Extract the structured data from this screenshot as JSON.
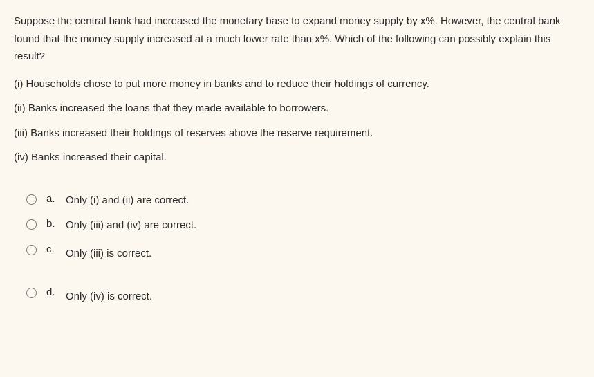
{
  "question": {
    "stem": "Suppose the central bank had increased the monetary base to expand money supply by x%. However, the central bank found that the money supply increased at a much lower rate than x%. Which of the following can possibly explain this result?",
    "statements": [
      "(i) Households chose to put more money in banks and to reduce their holdings of currency.",
      "(ii) Banks increased the loans that they made available to borrowers.",
      "(iii) Banks increased their holdings of reserves above the reserve requirement.",
      "(iv) Banks increased their capital."
    ],
    "options": [
      {
        "label": "a.",
        "text": "Only (i) and (ii) are correct."
      },
      {
        "label": "b.",
        "text": "Only (iii) and (iv) are correct."
      },
      {
        "label": "c.",
        "text": "Only (iii) is correct."
      },
      {
        "label": "d.",
        "text": "Only (iv) is correct."
      }
    ]
  },
  "styling": {
    "background_color": "#fcf8ef",
    "text_color": "#2a2a2a",
    "font_size": 15,
    "radio_border_color": "#7a7a7a"
  }
}
